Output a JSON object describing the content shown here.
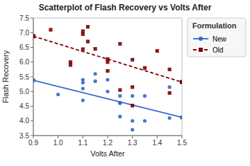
{
  "chart_data": {
    "type": "scatter",
    "title": "Scatterplot of Flash Recovery vs Volts After",
    "xlabel": "Volts After",
    "ylabel": "Flash Recovery",
    "xlim": [
      0.9,
      1.5
    ],
    "ylim": [
      3.5,
      7.5
    ],
    "xticks": [
      0.9,
      {
        "value": 1.0,
        "label": "1.0"
      },
      1.1,
      1.2,
      1.3,
      1.4,
      1.5
    ],
    "yticks": [
      3.5,
      {
        "value": 4.0,
        "label": "4.0"
      },
      4.5,
      {
        "value": 5.0,
        "label": "5.0"
      },
      5.5,
      {
        "value": 6.0,
        "label": "6.0"
      },
      6.5,
      {
        "value": 7.0,
        "label": "7.0"
      },
      7.5
    ],
    "grid": false,
    "legend": "right",
    "legend_title": "Formulation",
    "series": [
      {
        "name": "New",
        "type": "scatter",
        "color": "#3366cc",
        "marker": "circle",
        "x": [
          1.0,
          1.1,
          1.1,
          1.1,
          1.1,
          1.15,
          1.15,
          1.2,
          1.2,
          1.25,
          1.25,
          1.25,
          1.25,
          1.3,
          1.3,
          1.3,
          1.35,
          1.35,
          1.45,
          1.45
        ],
        "values": [
          4.9,
          5.1,
          5.3,
          5.4,
          4.7,
          5.6,
          5.35,
          5.4,
          5.0,
          4.62,
          4.15,
          4.85,
          4.6,
          4.85,
          4.0,
          3.7,
          4.0,
          4.85,
          5.15,
          4.1
        ]
      },
      {
        "name": "Old",
        "type": "scatter",
        "color": "#800000",
        "marker": "square",
        "x": [
          0.97,
          1.05,
          1.05,
          1.1,
          1.1,
          1.1,
          1.12,
          1.12,
          1.15,
          1.2,
          1.2,
          1.2,
          1.25,
          1.25,
          1.3,
          1.3,
          1.3,
          1.35,
          1.4,
          1.45,
          1.45
        ],
        "values": [
          7.1,
          6.0,
          5.9,
          7.05,
          6.95,
          6.44,
          7.2,
          6.7,
          6.45,
          6.1,
          5.7,
          6.0,
          6.62,
          5.05,
          6.08,
          5.15,
          4.52,
          5.8,
          6.38,
          5.75,
          4.95
        ]
      },
      {
        "type": "line",
        "color": "#3366cc",
        "marker": "circle",
        "line_style": "solid",
        "x": [
          0.9,
          1.5
        ],
        "values": [
          5.38,
          4.12
        ]
      },
      {
        "type": "line",
        "color": "#800000",
        "marker": "square",
        "line_style": "dashed",
        "x": [
          0.9,
          1.5
        ],
        "values": [
          6.88,
          5.32
        ]
      }
    ]
  }
}
